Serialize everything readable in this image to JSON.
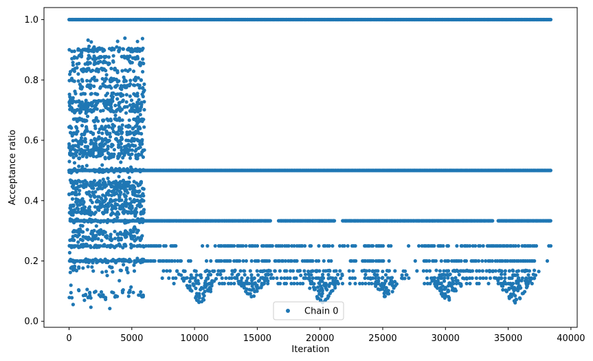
{
  "chart_data": {
    "type": "scatter",
    "title": "",
    "xlabel": "Iteration",
    "ylabel": "Acceptance ratio",
    "xlim": [
      -2000,
      40500
    ],
    "ylim": [
      -0.02,
      1.04
    ],
    "xticks": [
      0,
      5000,
      10000,
      15000,
      20000,
      25000,
      30000,
      35000,
      40000
    ],
    "yticks": [
      0.0,
      0.2,
      0.4,
      0.6,
      0.8,
      1.0
    ],
    "xtick_labels": [
      "0",
      "5000",
      "10000",
      "15000",
      "20000",
      "25000",
      "30000",
      "35000",
      "40000"
    ],
    "ytick_labels": [
      "0.0",
      "0.2",
      "0.4",
      "0.6",
      "0.8",
      "1.0"
    ],
    "grid": false,
    "legend_position": "bottom-center",
    "marker_color": "#1f77b4",
    "series": [
      {
        "name": "Chain 0",
        "description": "Dense scatter of acceptance ratio per iteration",
        "bands": [
          {
            "y": 1.0,
            "x_range": [
              0,
              38400
            ],
            "density": "full"
          },
          {
            "y": 0.5,
            "x_range": [
              0,
              38400
            ],
            "density": "full"
          },
          {
            "y": 0.333,
            "x_range": [
              0,
              38400
            ],
            "density": "high",
            "gaps": [
              [
                16100,
                16700
              ],
              [
                21200,
                21800
              ],
              [
                33800,
                34200
              ]
            ]
          },
          {
            "y": 0.25,
            "x_range": [
              0,
              38400
            ],
            "density": "medium"
          },
          {
            "y": 0.2,
            "x_range": [
              0,
              38400
            ],
            "density": "medium"
          },
          {
            "y": 0.167,
            "x_range": [
              7500,
              37000
            ],
            "density": "low"
          },
          {
            "y": 0.143,
            "x_range": [
              7500,
              37000
            ],
            "density": "low"
          },
          {
            "y": 0.125,
            "x_range": [
              7500,
              37000
            ],
            "density": "low"
          }
        ],
        "early_phase": {
          "x_range": [
            0,
            6000
          ],
          "y_levels": [
            0.9,
            0.875,
            0.857,
            0.833,
            0.8,
            0.778,
            0.75,
            0.727,
            0.714,
            0.7,
            0.667,
            0.643,
            0.625,
            0.6,
            0.583,
            0.571,
            0.556,
            0.545,
            0.5,
            0.462,
            0.455,
            0.444,
            0.429,
            0.417,
            0.4,
            0.385,
            0.375,
            0.364,
            0.357,
            0.333,
            0.3,
            0.286,
            0.273,
            0.25,
            0.2,
            0.182,
            0.167,
            0.1,
            0.091,
            0.083
          ],
          "y_min": 0.04,
          "y_max": 0.94
        },
        "late_clusters": [
          {
            "x_center": 10500,
            "y_min": 0.06,
            "y_max": 0.25
          },
          {
            "x_center": 14600,
            "y_min": 0.08,
            "y_max": 0.25
          },
          {
            "x_center": 20200,
            "y_min": 0.06,
            "y_max": 0.25
          },
          {
            "x_center": 25300,
            "y_min": 0.08,
            "y_max": 0.25
          },
          {
            "x_center": 30200,
            "y_min": 0.07,
            "y_max": 0.25
          },
          {
            "x_center": 35500,
            "y_min": 0.06,
            "y_max": 0.25
          }
        ]
      }
    ]
  }
}
